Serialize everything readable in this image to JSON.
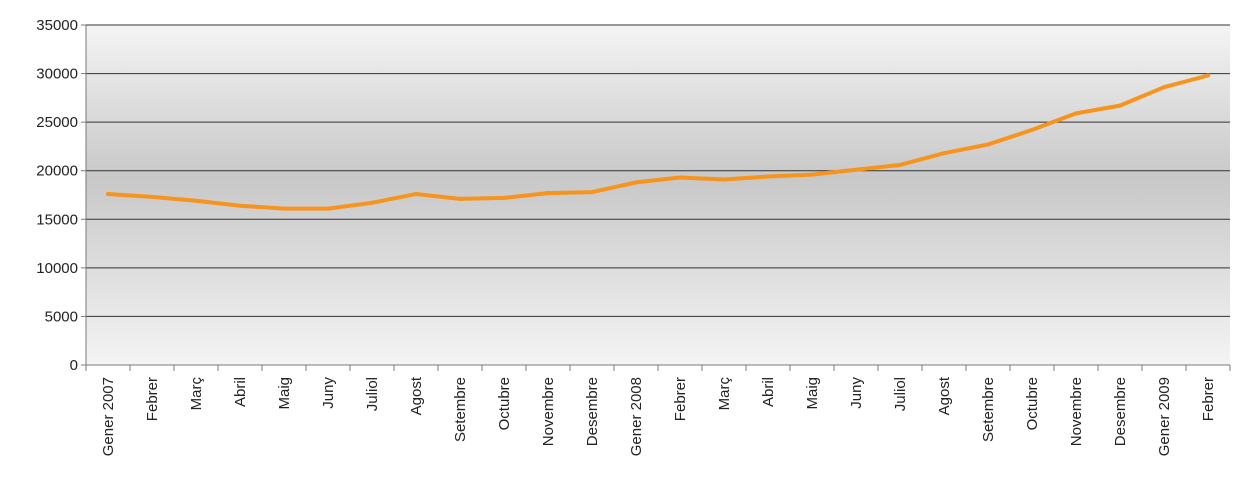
{
  "chart_data": {
    "type": "line",
    "title": "",
    "xlabel": "",
    "ylabel": "",
    "ylim": [
      0,
      35000
    ],
    "yticks": [
      0,
      5000,
      10000,
      15000,
      20000,
      25000,
      30000,
      35000
    ],
    "grid": "horizontal",
    "legend": "none",
    "categories": [
      "Gener 2007",
      "Febrer",
      "Març",
      "Abril",
      "Maig",
      "Juny",
      "Juliol",
      "Agost",
      "Setembre",
      "Octubre",
      "Novembre",
      "Desembre",
      "Gener 2008",
      "Febrer",
      "Març",
      "Abril",
      "Maig",
      "Juny",
      "Juliol",
      "Agost",
      "Setembre",
      "Octubre",
      "Novembre",
      "Desembre",
      "Gener 2009",
      "Febrer"
    ],
    "series": [
      {
        "values": [
          17600,
          17300,
          16900,
          16400,
          16100,
          16100,
          16700,
          17600,
          17100,
          17200,
          17700,
          17800,
          18800,
          19300,
          19100,
          19400,
          19600,
          20100,
          20600,
          21800,
          22700,
          24200,
          25900,
          26700,
          28600,
          29800
        ]
      }
    ],
    "colors": {
      "line": "#f7941d",
      "plot_mid": "#c8c8c8",
      "plot_edge": "#f4f4f4",
      "grid": "#333333"
    }
  }
}
